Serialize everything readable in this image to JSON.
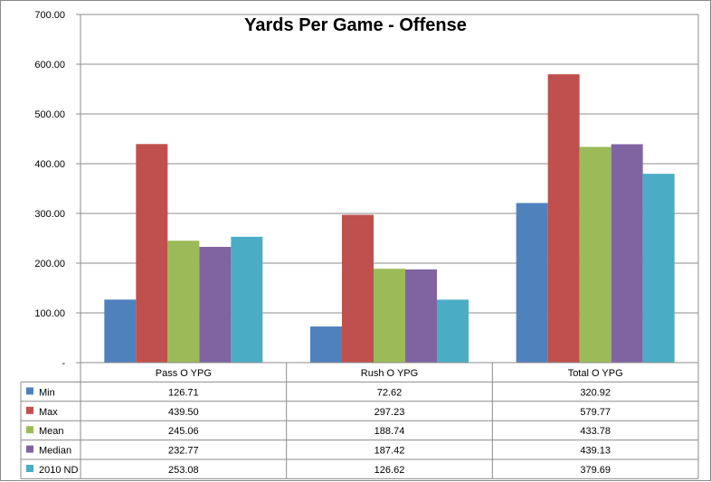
{
  "chart_data": {
    "type": "bar",
    "title": "Yards Per Game - Offense",
    "xlabel": "",
    "ylabel": "",
    "ylim": [
      0,
      700
    ],
    "y_ticks": [
      {
        "value": 0,
        "label": "-"
      },
      {
        "value": 100,
        "label": "100.00"
      },
      {
        "value": 200,
        "label": "200.00"
      },
      {
        "value": 300,
        "label": "300.00"
      },
      {
        "value": 400,
        "label": "400.00"
      },
      {
        "value": 500,
        "label": "500.00"
      },
      {
        "value": 600,
        "label": "600.00"
      },
      {
        "value": 700,
        "label": "700.00"
      }
    ],
    "grid": true,
    "legend": "data-table",
    "categories": [
      "Pass O YPG",
      "Rush O YPG",
      "Total O YPG"
    ],
    "series": [
      {
        "name": "Min",
        "color": "#4F81BD",
        "values": [
          126.71,
          72.62,
          320.92
        ],
        "labels": [
          "126.71",
          "72.62",
          "320.92"
        ]
      },
      {
        "name": "Max",
        "color": "#C0504D",
        "values": [
          439.5,
          297.23,
          579.77
        ],
        "labels": [
          "439.50",
          "297.23",
          "579.77"
        ]
      },
      {
        "name": "Mean",
        "color": "#9BBB59",
        "values": [
          245.06,
          188.74,
          433.78
        ],
        "labels": [
          "245.06",
          "188.74",
          "433.78"
        ]
      },
      {
        "name": "Median",
        "color": "#8064A2",
        "values": [
          232.77,
          187.42,
          439.13
        ],
        "labels": [
          "232.77",
          "187.42",
          "439.13"
        ]
      },
      {
        "name": "2010 ND",
        "color": "#4BACC6",
        "values": [
          253.08,
          126.62,
          379.69
        ],
        "labels": [
          "253.08",
          "126.62",
          "379.69"
        ]
      }
    ]
  }
}
